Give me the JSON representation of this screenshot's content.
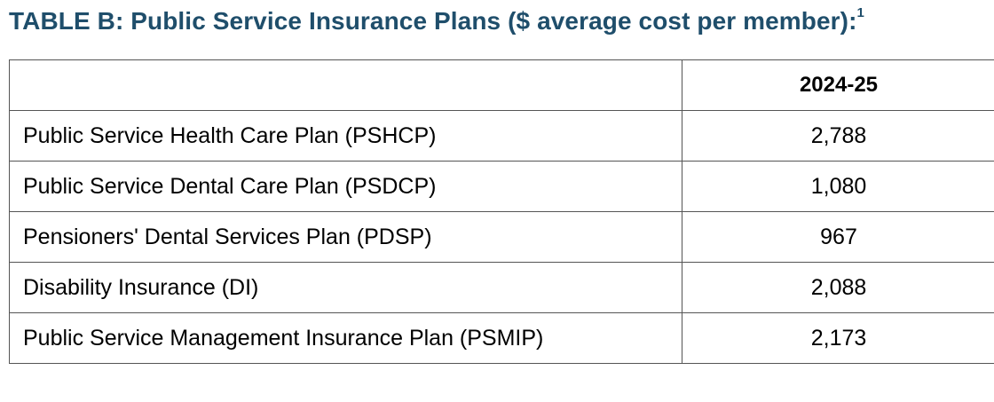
{
  "title": {
    "text": "TABLE B: Public Service Insurance Plans ($ average cost per member):",
    "footnote": "1"
  },
  "table": {
    "header": {
      "name_col": "",
      "value_col": "2024-25"
    },
    "rows": [
      {
        "name": "Public Service Health Care Plan (PSHCP)",
        "value": "2,788"
      },
      {
        "name": "Public Service Dental Care Plan (PSDCP)",
        "value": "1,080"
      },
      {
        "name": "Pensioners' Dental Services Plan (PDSP)",
        "value": "967"
      },
      {
        "name": "Disability Insurance (DI)",
        "value": "2,088"
      },
      {
        "name": "Public Service Management Insurance Plan (PSMIP)",
        "value": "2,173"
      }
    ]
  }
}
